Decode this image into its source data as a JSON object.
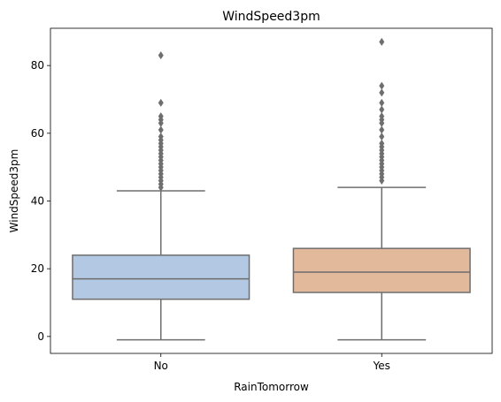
{
  "chart_data": {
    "type": "box",
    "title": "WindSpeed3pm",
    "xlabel": "RainTomorrow",
    "ylabel": "WindSpeed3pm",
    "ylim": [
      -5,
      91
    ],
    "yticks": [
      0,
      20,
      40,
      60,
      80
    ],
    "grid": false,
    "categories": [
      "No",
      "Yes"
    ],
    "boxes": [
      {
        "category": "No",
        "color": "#b3c8e2",
        "whisker_low": -1,
        "q1": 11,
        "median": 17,
        "q3": 24,
        "whisker_high": 43,
        "outliers": [
          44,
          45,
          46,
          47,
          48,
          49,
          50,
          51,
          52,
          53,
          54,
          55,
          56,
          57,
          58,
          59,
          61,
          63,
          64,
          65,
          69,
          83
        ]
      },
      {
        "category": "Yes",
        "color": "#e2b99b",
        "whisker_low": -1,
        "q1": 13,
        "median": 19,
        "q3": 26,
        "whisker_high": 44,
        "outliers": [
          46,
          47,
          48,
          49,
          50,
          51,
          52,
          53,
          54,
          55,
          56,
          57,
          59,
          61,
          63,
          64,
          65,
          67,
          69,
          72,
          74,
          87
        ]
      }
    ],
    "colors": {
      "line": "#6e6e6e",
      "outlier": "#6e6e6e",
      "axis": "#000000"
    }
  }
}
